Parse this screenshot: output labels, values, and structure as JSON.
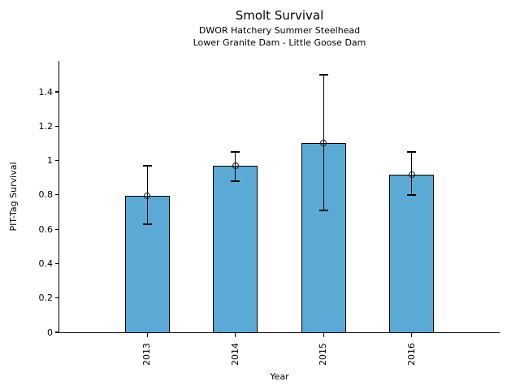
{
  "chart_data": {
    "type": "bar",
    "title": "Smolt Survival",
    "subtitle1": "DWOR Hatchery Summer Steelhead",
    "subtitle2": "Lower Granite Dam - Little Goose Dam",
    "xlabel": "Year",
    "ylabel": "PIT-Tag Survival",
    "categories": [
      "2013",
      "2014",
      "2015",
      "2016"
    ],
    "values": [
      0.795,
      0.97,
      1.1,
      0.92
    ],
    "error_low": [
      0.63,
      0.88,
      0.71,
      0.8
    ],
    "error_high": [
      0.97,
      1.05,
      1.5,
      1.05
    ],
    "yticks": [
      0,
      0.2,
      0.4,
      0.6,
      0.8,
      1,
      1.2,
      1.4
    ],
    "ytick_labels": [
      "0",
      "0.2",
      "0.4",
      "0.6",
      "0.8",
      "1",
      "1.2",
      "1.4"
    ],
    "ylim": [
      0,
      1.58
    ],
    "x_tick_rotation": 90,
    "grid": false,
    "legend": null,
    "marker": "open-circle",
    "bar_color": "#5aaad5",
    "bar_edge_color": "#000000",
    "error_color": "#000000",
    "text_color": "#000000"
  }
}
